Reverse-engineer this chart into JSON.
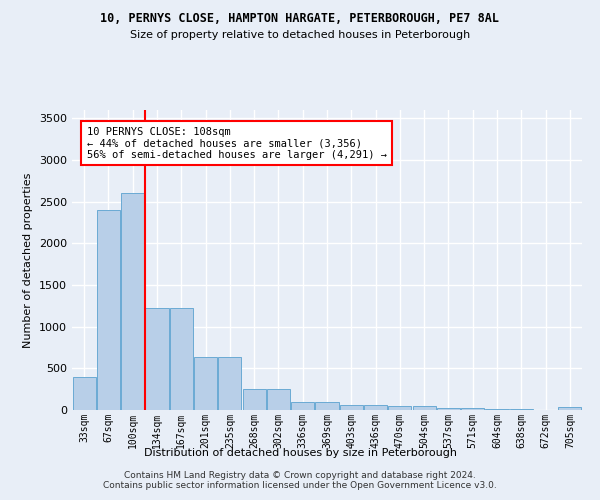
{
  "title1": "10, PERNYS CLOSE, HAMPTON HARGATE, PETERBOROUGH, PE7 8AL",
  "title2": "Size of property relative to detached houses in Peterborough",
  "xlabel": "Distribution of detached houses by size in Peterborough",
  "ylabel": "Number of detached properties",
  "bar_labels": [
    "33sqm",
    "67sqm",
    "100sqm",
    "134sqm",
    "167sqm",
    "201sqm",
    "235sqm",
    "268sqm",
    "302sqm",
    "336sqm",
    "369sqm",
    "403sqm",
    "436sqm",
    "470sqm",
    "504sqm",
    "537sqm",
    "571sqm",
    "604sqm",
    "638sqm",
    "672sqm",
    "705sqm"
  ],
  "bar_values": [
    400,
    2400,
    2600,
    1230,
    1230,
    640,
    640,
    250,
    250,
    100,
    100,
    55,
    55,
    50,
    50,
    30,
    30,
    10,
    10,
    5,
    40
  ],
  "bar_color": "#b8cfe8",
  "bar_edge_color": "#6aaad4",
  "red_line_x": 2.5,
  "annotation_text": "10 PERNYS CLOSE: 108sqm\n← 44% of detached houses are smaller (3,356)\n56% of semi-detached houses are larger (4,291) →",
  "annotation_box_color": "white",
  "annotation_box_edge": "red",
  "ylim": [
    0,
    3600
  ],
  "yticks": [
    0,
    500,
    1000,
    1500,
    2000,
    2500,
    3000,
    3500
  ],
  "background_color": "#e8eef7",
  "grid_color": "white",
  "footer": "Contains HM Land Registry data © Crown copyright and database right 2024.\nContains public sector information licensed under the Open Government Licence v3.0."
}
